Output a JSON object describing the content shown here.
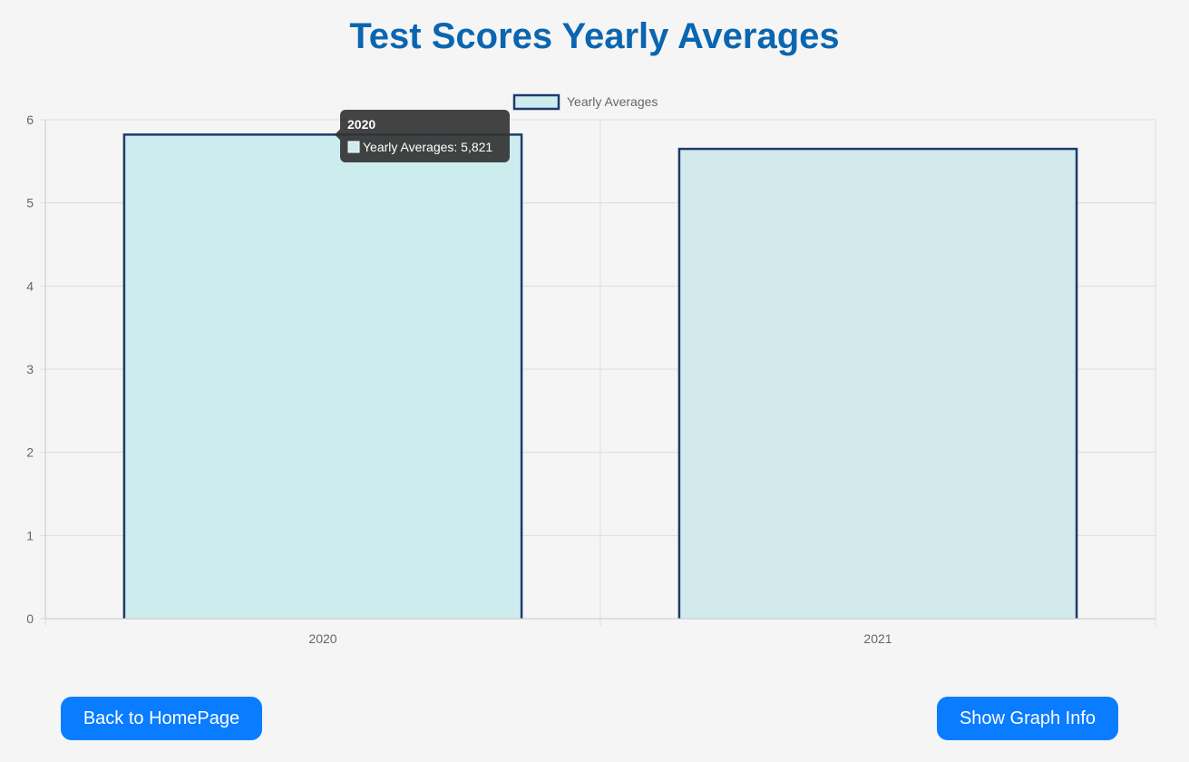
{
  "header": {
    "title": "Test Scores Yearly Averages"
  },
  "chart_data": {
    "type": "bar",
    "categories": [
      "2020",
      "2021"
    ],
    "series": [
      {
        "name": "Yearly Averages",
        "values": [
          5.821,
          5.65
        ],
        "fill_colors": [
          "#cdecee",
          "#d3eaec"
        ],
        "border_color": "#1e3a6b"
      }
    ],
    "ylim": [
      0,
      6
    ],
    "yticks": [
      "0",
      "1",
      "2",
      "3",
      "4",
      "5",
      "6"
    ],
    "grid": true,
    "legend": "top-center",
    "tooltip": {
      "title": "2020",
      "label": "Yearly Averages: 5,821"
    }
  },
  "buttons": {
    "back_label": "Back to HomePage",
    "info_label": "Show Graph Info"
  },
  "colors": {
    "title": "#0a66b0",
    "button": "#0a7cff",
    "grid": "#dddddd",
    "tick_text": "#666666",
    "tooltip_bg": "#333333"
  }
}
